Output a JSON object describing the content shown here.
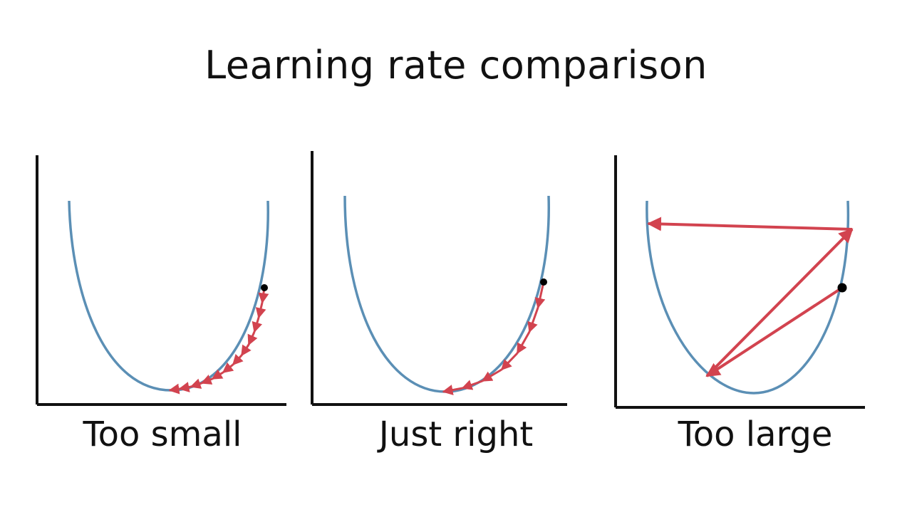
{
  "title": "Learning rate comparison",
  "colors": {
    "curve": "#5b8fb5",
    "arrow": "#d2434f",
    "axis": "#111111",
    "point": "#000000"
  },
  "panels": [
    {
      "label": "Too small"
    },
    {
      "label": "Just right"
    },
    {
      "label": "Too large"
    }
  ]
}
